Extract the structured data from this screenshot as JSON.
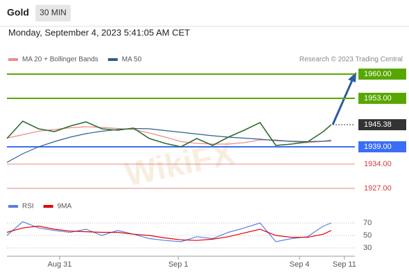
{
  "header": {
    "title": "Gold",
    "timeframe": "30 MIN",
    "datetime": "Monday, September 4, 2023 5:41:05 AM CET"
  },
  "watermark": "WikiFX",
  "chart_data": [
    {
      "type": "line",
      "source": "Research © 2023 Trading Central",
      "x": [
        0,
        6,
        12,
        18,
        24,
        30,
        36,
        42,
        48,
        54,
        60,
        66,
        72,
        78,
        84,
        90,
        96,
        102,
        108,
        114,
        120,
        123
      ],
      "values": [
        1941.4,
        1946.4,
        1944.2,
        1943.4,
        1945,
        1946.2,
        1944.2,
        1943.8,
        1944.4,
        1941.4,
        1940,
        1939,
        1941.4,
        1939.4,
        1941.8,
        1943.8,
        1946,
        1939.4,
        1939.8,
        1940.4,
        1943.4,
        1945.38
      ],
      "color": "#2f6b2f",
      "series": [
        {
          "name": "MA 20 + Bollinger Bands",
          "color": "#f08a8a",
          "values": [
            1941.5,
            1942.5,
            1943.5,
            1944,
            1944.5,
            1944.8,
            1944.6,
            1944.3,
            1944,
            1943,
            1941.8,
            1940.5,
            1940,
            1939.8,
            1939.8,
            1940.2,
            1941,
            1941,
            1940.5,
            1940.2,
            1940.6,
            1941
          ]
        },
        {
          "name": "MA 50",
          "color": "#2f5d8c",
          "values": [
            1934.5,
            1937,
            1939,
            1940.5,
            1941.8,
            1942.8,
            1943.5,
            1944,
            1944.3,
            1944.2,
            1943.7,
            1943.2,
            1942.7,
            1942.2,
            1941.8,
            1941.5,
            1941.2,
            1940.8,
            1940.6,
            1940.5,
            1940.6,
            1940.7
          ]
        }
      ],
      "levels": [
        {
          "value": 1960,
          "label": "1960.00",
          "color": "#58a700",
          "style": "box",
          "line": true
        },
        {
          "value": 1953,
          "label": "1953.00",
          "color": "#58a700",
          "style": "box",
          "line": true
        },
        {
          "value": 1945.38,
          "label": "1945.38",
          "color": "#333333",
          "style": "box",
          "line": false
        },
        {
          "value": 1939,
          "label": "1939.00",
          "color": "#3b6ef5",
          "style": "box",
          "line": true
        },
        {
          "value": 1934,
          "label": "1934.00",
          "color": "#d23a3a",
          "style": "text",
          "line": true
        },
        {
          "value": 1927,
          "label": "1927.00",
          "color": "#d23a3a",
          "style": "text",
          "line": true
        }
      ],
      "xlim": [
        0,
        132
      ],
      "ylim": [
        1923.4,
        1963.4
      ]
    },
    {
      "type": "line",
      "x": [
        0,
        6,
        12,
        18,
        24,
        30,
        36,
        42,
        48,
        54,
        60,
        66,
        72,
        78,
        84,
        90,
        96,
        102,
        108,
        114,
        120,
        123
      ],
      "series": [
        {
          "name": "RSI",
          "color": "#5b7fdc",
          "values": [
            50,
            72,
            62,
            58,
            55,
            60,
            50,
            58,
            52,
            45,
            42,
            40,
            48,
            45,
            55,
            62,
            70,
            40,
            45,
            48,
            65,
            70
          ]
        },
        {
          "name": "9MA",
          "color": "#e00000",
          "values": [
            55,
            62,
            65,
            60,
            57,
            56,
            55,
            55,
            52,
            50,
            46,
            43,
            42,
            44,
            48,
            54,
            60,
            50,
            47,
            47,
            52,
            58
          ]
        }
      ],
      "xlim": [
        0,
        132
      ],
      "ylim": [
        15,
        90
      ],
      "yticks": [
        70,
        50,
        30
      ],
      "grid": true,
      "xticks": [
        {
          "value": 20,
          "label": "Aug 31"
        },
        {
          "value": 65,
          "label": "Sep 1"
        },
        {
          "value": 111,
          "label": "Sep 4"
        },
        {
          "value": 128,
          "label": "Sep 11"
        }
      ]
    }
  ]
}
